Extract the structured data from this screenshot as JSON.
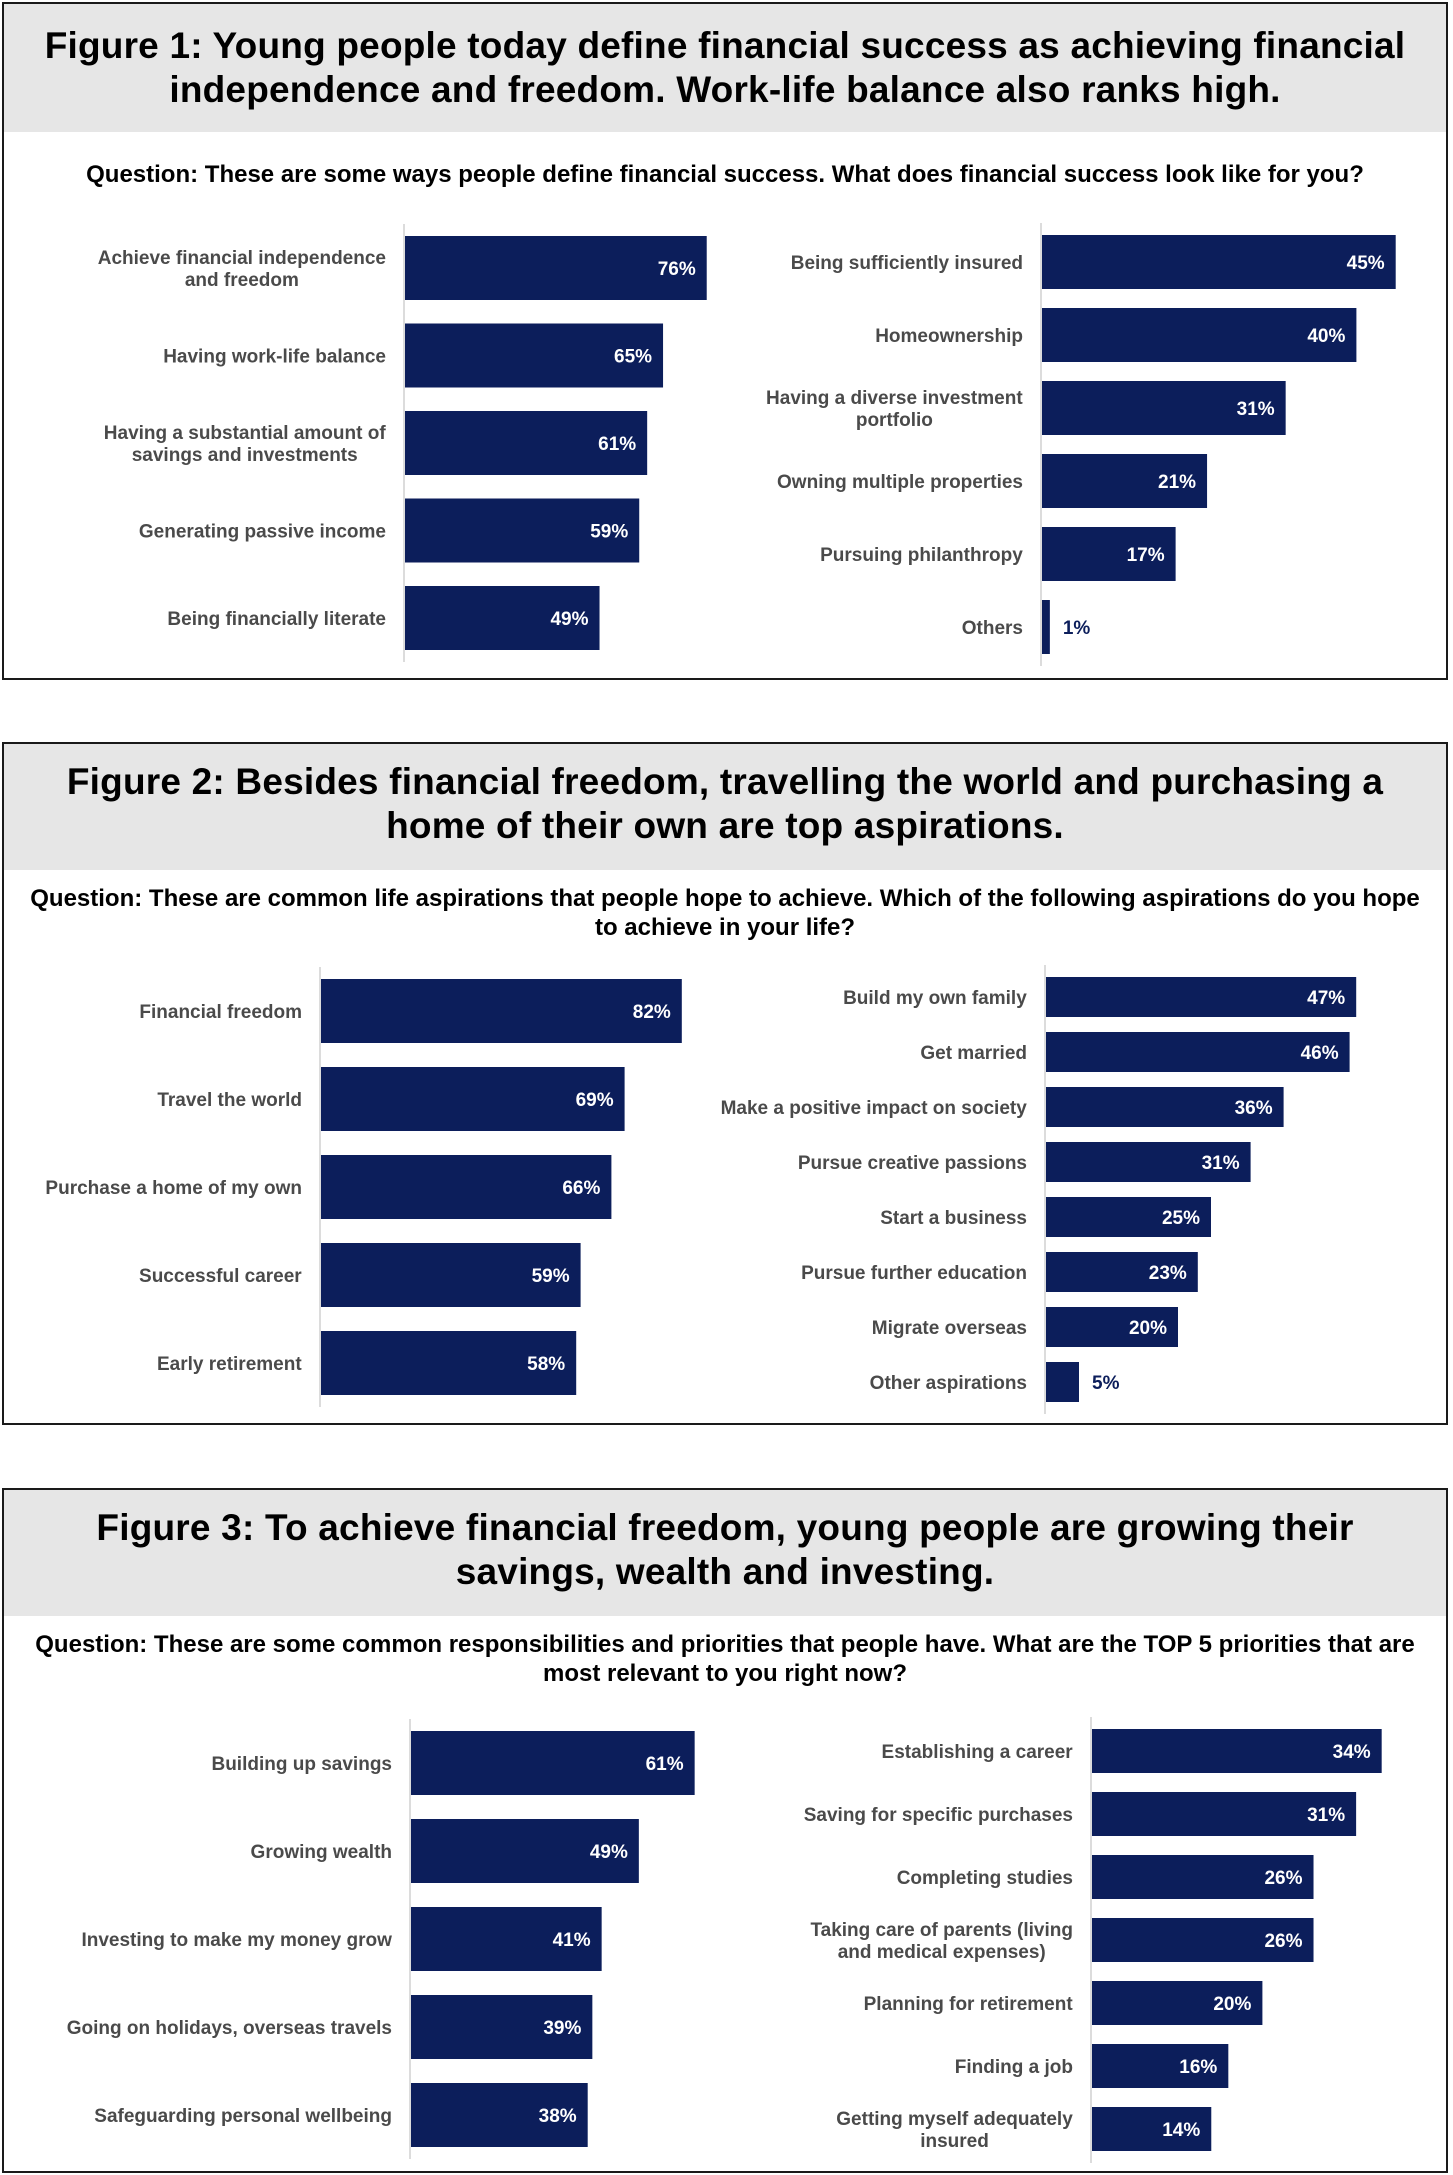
{
  "colors": {
    "bar": "#0c1e5b",
    "label": "#4a4a4a",
    "value_inside": "#ffffff",
    "value_outside": "#0c1e5b",
    "title_bg": "#e6e6e6"
  },
  "figures": [
    {
      "title": "Figure 1: Young people today define financial success as achieving financial independence and freedom. Work-life balance also ranks high.",
      "question": "Question: These are some ways people define financial success. What does financial success look like for you?"
    },
    {
      "title": "Figure 2: Besides financial freedom, travelling the world and purchasing a home of their own are top aspirations.",
      "question": "Question: These are common life aspirations that people hope to achieve. Which of the following aspirations do you hope to achieve in your life?"
    },
    {
      "title": "Figure 3: To achieve financial freedom, young people are growing their savings, wealth and investing.",
      "question": "Question: These are some common responsibilities and priorities that people have. What are the TOP 5 priorities that are most relevant to you right now?"
    }
  ],
  "chart_data": [
    {
      "type": "bar",
      "orientation": "horizontal",
      "figure": 1,
      "side": "left",
      "unit": "%",
      "categories": [
        "Achieve financial independence and freedom",
        "Having work-life balance",
        "Having a substantial amount of savings and investments",
        "Generating passive income",
        "Being financially literate"
      ],
      "values": [
        76,
        65,
        61,
        59,
        49
      ],
      "value_labels": [
        "76%",
        "65%",
        "61%",
        "59%",
        "49%"
      ]
    },
    {
      "type": "bar",
      "orientation": "horizontal",
      "figure": 1,
      "side": "right",
      "unit": "%",
      "categories": [
        "Being sufficiently insured",
        "Homeownership",
        "Having a diverse investment portfolio",
        "Owning multiple properties",
        "Pursuing philanthropy",
        "Others"
      ],
      "values": [
        45,
        40,
        31,
        21,
        17,
        1
      ],
      "value_labels": [
        "45%",
        "40%",
        "31%",
        "21%",
        "17%",
        "1%"
      ]
    },
    {
      "type": "bar",
      "orientation": "horizontal",
      "figure": 2,
      "side": "left",
      "unit": "%",
      "categories": [
        "Financial freedom",
        "Travel the world",
        "Purchase a home of my own",
        "Successful career",
        "Early retirement"
      ],
      "values": [
        82,
        69,
        66,
        59,
        58
      ],
      "value_labels": [
        "82%",
        "69%",
        "66%",
        "59%",
        "58%"
      ]
    },
    {
      "type": "bar",
      "orientation": "horizontal",
      "figure": 2,
      "side": "right",
      "unit": "%",
      "categories": [
        "Build my own family",
        "Get married",
        "Make a positive impact on society",
        "Pursue creative passions",
        "Start a business",
        "Pursue further education",
        "Migrate overseas",
        "Other aspirations"
      ],
      "values": [
        47,
        46,
        36,
        31,
        25,
        23,
        20,
        5
      ],
      "value_labels": [
        "47%",
        "46%",
        "36%",
        "31%",
        "25%",
        "23%",
        "20%",
        "5%"
      ]
    },
    {
      "type": "bar",
      "orientation": "horizontal",
      "figure": 3,
      "side": "left",
      "unit": "%",
      "categories": [
        "Building up savings",
        "Growing wealth",
        "Investing to make my money grow",
        "Going on holidays, overseas travels",
        "Safeguarding personal wellbeing"
      ],
      "values": [
        61,
        49,
        41,
        39,
        38
      ],
      "value_labels": [
        "61%",
        "49%",
        "41%",
        "39%",
        "38%"
      ]
    },
    {
      "type": "bar",
      "orientation": "horizontal",
      "figure": 3,
      "side": "right",
      "unit": "%",
      "categories": [
        "Establishing a career",
        "Saving for specific purchases",
        "Completing studies",
        "Taking care of parents (living and medical expenses)",
        "Planning for retirement",
        "Finding a job",
        "Getting myself adequately insured"
      ],
      "values": [
        34,
        31,
        26,
        26,
        20,
        16,
        14
      ],
      "value_labels": [
        "34%",
        "31%",
        "26%",
        "26%",
        "20%",
        "16%",
        "14%"
      ]
    }
  ]
}
